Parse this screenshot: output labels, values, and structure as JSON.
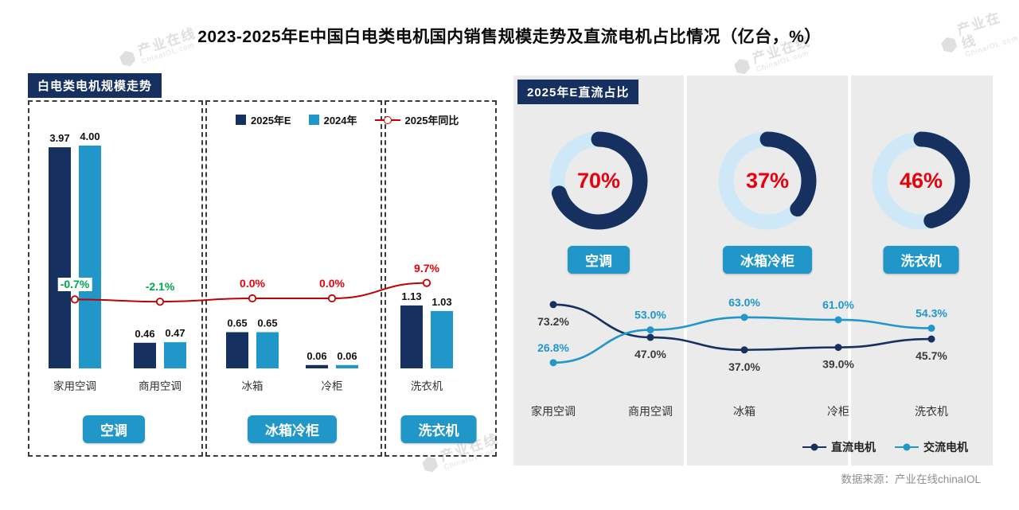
{
  "title": "2023-2025年E中国白电类电机国内销售规模走势及直流电机占比情况（亿台，%）",
  "left_panel": {
    "header": "白电类电机规模走势"
  },
  "right_panel": {
    "header": "2025年E直流占比"
  },
  "watermark": {
    "name": "产业在线",
    "domain": "ChinaIOL.com"
  },
  "footer": {
    "source": "数据来源：产业在线chinaIOL"
  },
  "colors": {
    "navy": "#16305f",
    "blue": "#2196c9",
    "light_blue_track": "#cfe8f7",
    "red": "#e8000d",
    "dark_red_line": "#c00000",
    "green": "#00a651",
    "panel_gray": "#ebebeb"
  },
  "chart_data": [
    {
      "type": "bar",
      "title": "白电类电机规模走势",
      "unit": "亿台",
      "categories": [
        "家用空调",
        "商用空调",
        "冰箱",
        "冷柜",
        "洗衣机"
      ],
      "series": [
        {
          "name": "2025年E",
          "color": "#16305f",
          "values": [
            3.97,
            0.46,
            0.65,
            0.06,
            1.13
          ],
          "value_labels": [
            "3.97",
            "0.46",
            "0.65",
            "0.06",
            "1.13"
          ]
        },
        {
          "name": "2024年",
          "color": "#2196c9",
          "values": [
            4.0,
            0.47,
            0.65,
            0.06,
            1.03
          ],
          "value_labels": [
            "4.00",
            "0.47",
            "0.65",
            "0.06",
            "1.03"
          ]
        }
      ],
      "yoy_line": {
        "name": "2025年同比",
        "values": [
          -0.7,
          -2.1,
          0.0,
          0.0,
          9.7
        ],
        "labels": [
          "-0.7%",
          "-2.1%",
          "0.0%",
          "0.0%",
          "9.7%"
        ],
        "label_colors": [
          "#00a651",
          "#00a651",
          "#e8000d",
          "#e8000d",
          "#e8000d"
        ]
      },
      "group_buttons": [
        "空调",
        "冰箱冷柜",
        "洗衣机"
      ]
    },
    {
      "type": "pie",
      "title": "2025年E直流占比",
      "donuts": [
        {
          "label": "空调",
          "value": 70,
          "text": "70%"
        },
        {
          "label": "冰箱冷柜",
          "value": 37,
          "text": "37%"
        },
        {
          "label": "洗衣机",
          "value": 46,
          "text": "46%"
        }
      ]
    },
    {
      "type": "line",
      "categories": [
        "家用空调",
        "商用空调",
        "冰箱",
        "冷柜",
        "洗衣机"
      ],
      "series": [
        {
          "name": "直流电机",
          "color": "#16305f",
          "label_color": "#3a3a3a",
          "label_pos": "below",
          "values": [
            73.2,
            47.0,
            37.0,
            39.0,
            45.7
          ],
          "labels": [
            "73.2%",
            "47.0%",
            "37.0%",
            "39.0%",
            "45.7%"
          ]
        },
        {
          "name": "交流电机",
          "color": "#2196c9",
          "label_color": "#2196c9",
          "label_pos": "above",
          "values": [
            26.8,
            53.0,
            63.0,
            61.0,
            54.3
          ],
          "labels": [
            "26.8%",
            "53.0%",
            "63.0%",
            "61.0%",
            "54.3%"
          ]
        }
      ]
    }
  ]
}
